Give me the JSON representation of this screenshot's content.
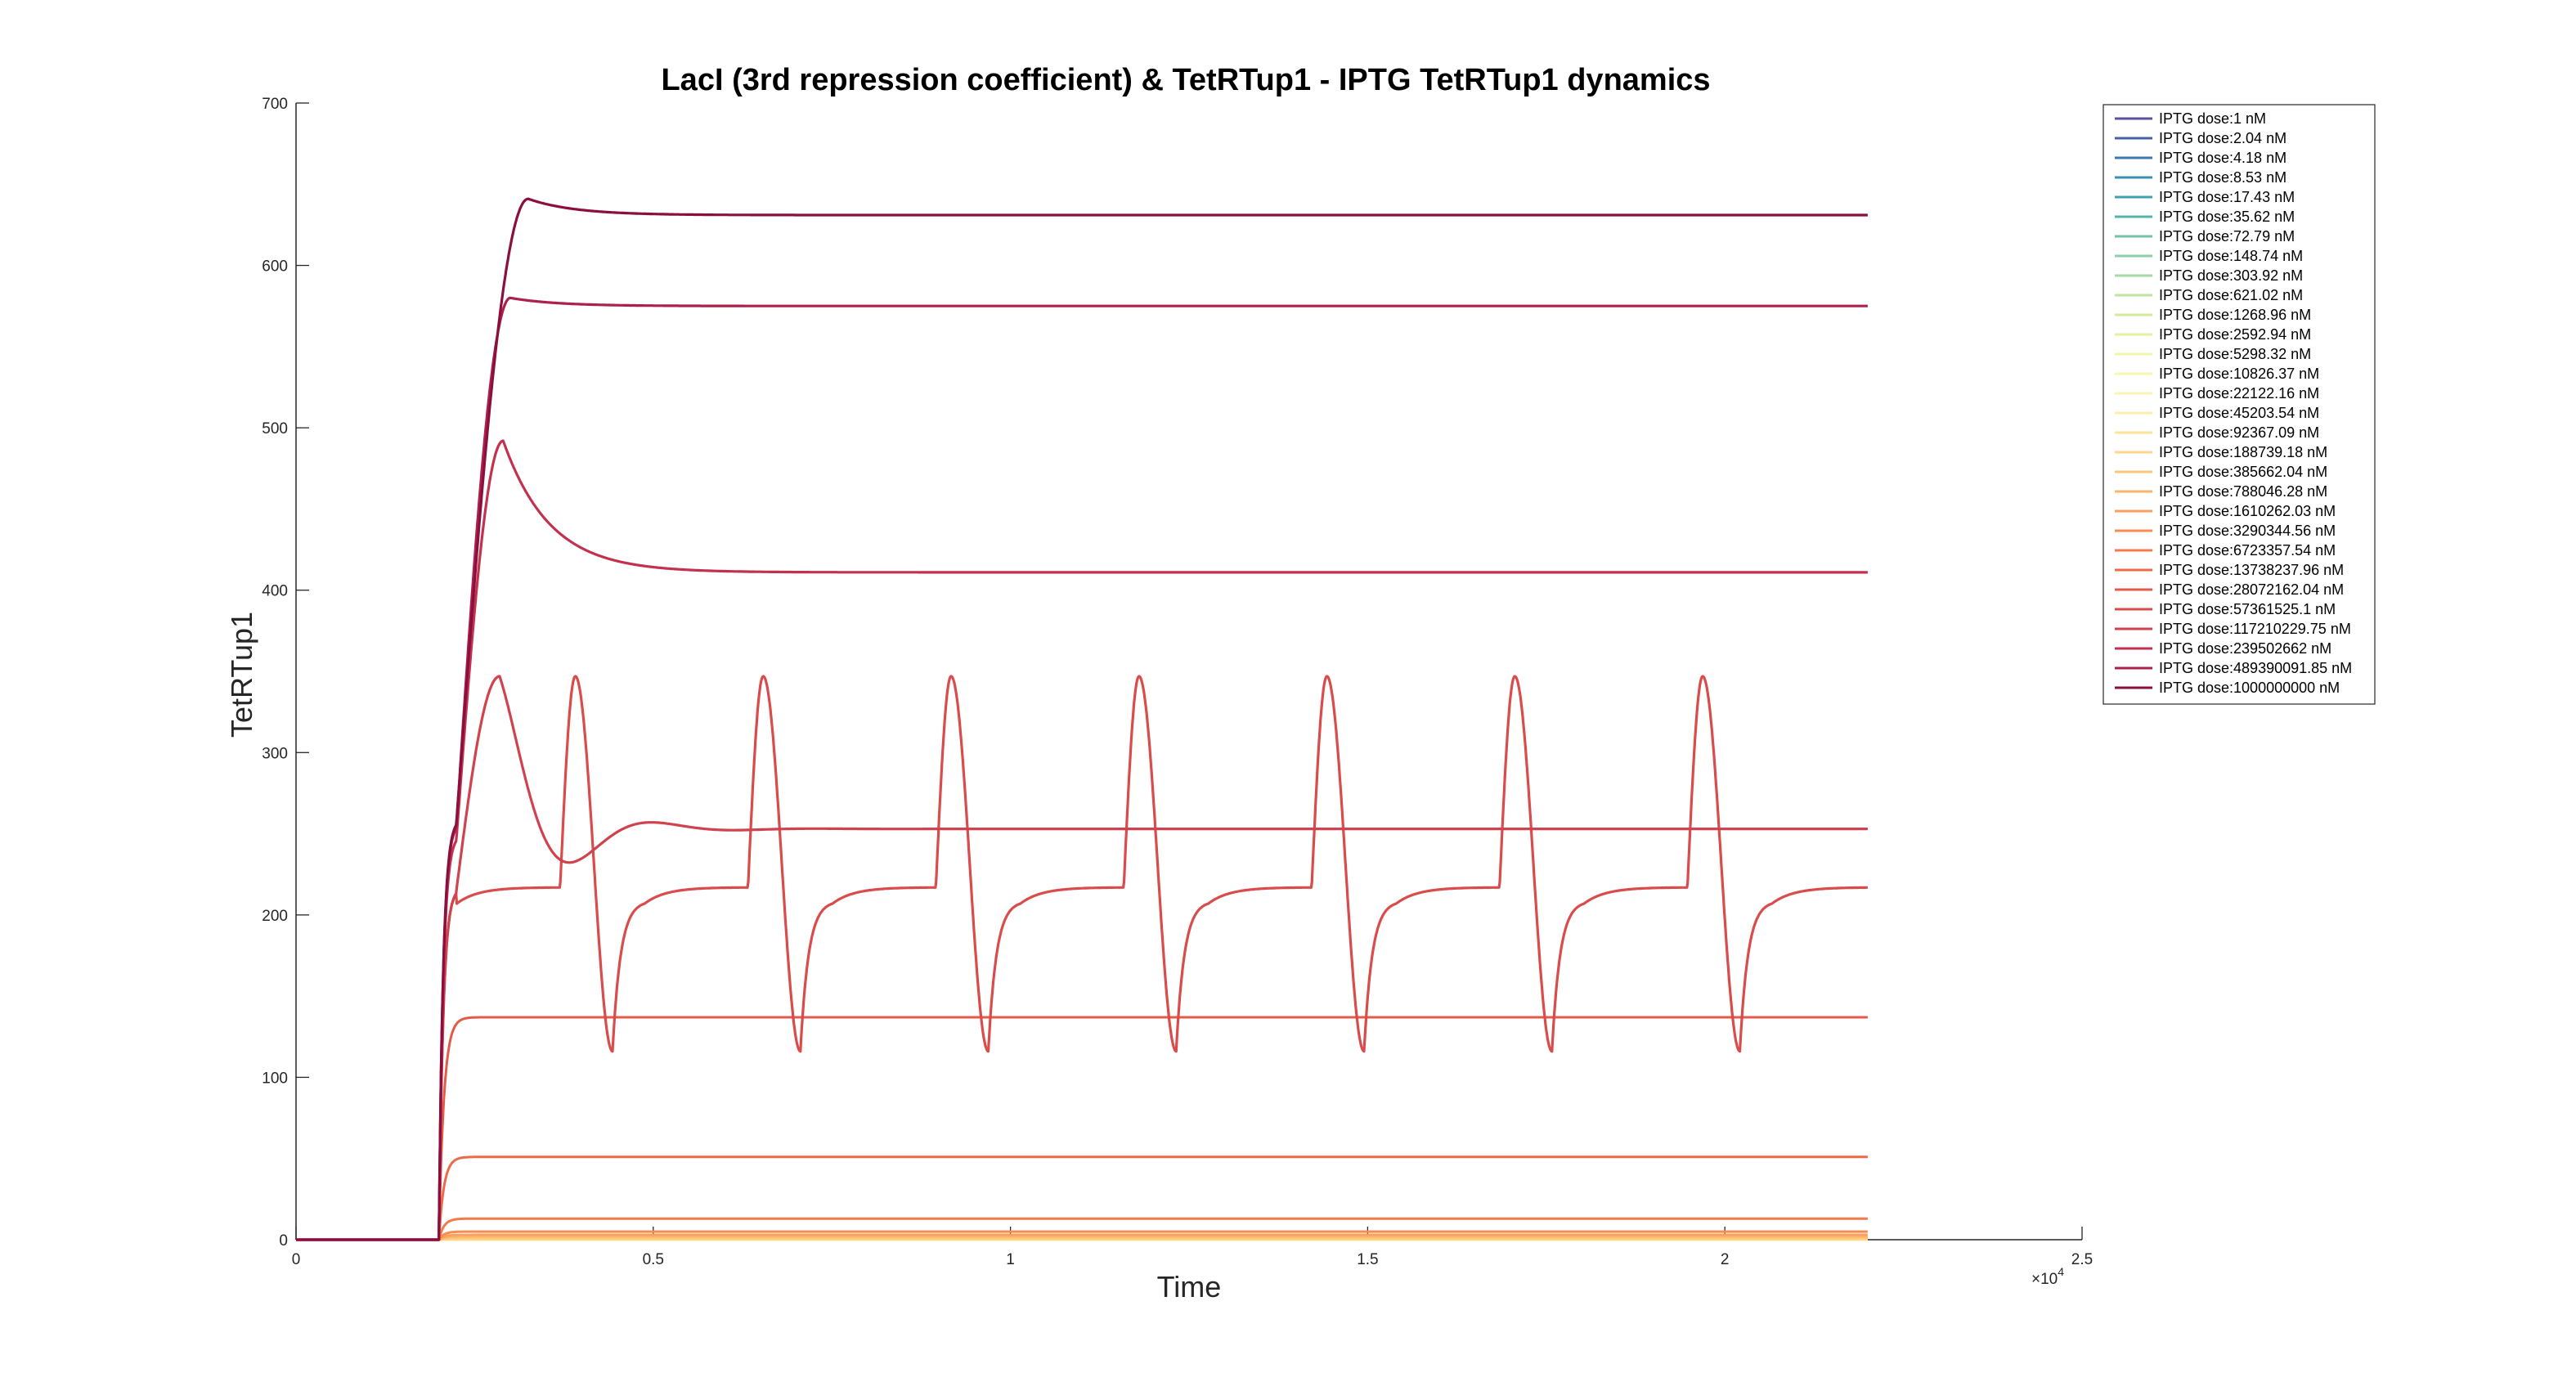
{
  "chart_data": {
    "type": "line",
    "title": "LacI (3rd repression coefficient) & TetRTup1 - IPTG TetRTup1 dynamics",
    "xlabel": "Time",
    "ylabel": "TetRTup1",
    "xlim": [
      0,
      25000
    ],
    "ylim": [
      0,
      700
    ],
    "x_ticks": [
      0,
      5000,
      10000,
      15000,
      20000,
      25000
    ],
    "x_tick_labels": [
      "0",
      "0.5",
      "1",
      "1.5",
      "2",
      "2.5"
    ],
    "x_exponent_label": "×10",
    "x_exponent_power": "4",
    "y_ticks": [
      0,
      100,
      200,
      300,
      400,
      500,
      600,
      700
    ],
    "y_tick_labels": [
      "0",
      "100",
      "200",
      "300",
      "400",
      "500",
      "600",
      "700"
    ],
    "grid": false,
    "legend_position": "top-right",
    "x_end": 22000,
    "step_time": 2000,
    "series": [
      {
        "name": "IPTG dose:1 nM",
        "color": "#5e4fa2",
        "kind": "flat",
        "steady": 0
      },
      {
        "name": "IPTG dose:2.04 nM",
        "color": "#4a61ab",
        "kind": "flat",
        "steady": 0
      },
      {
        "name": "IPTG dose:4.18 nM",
        "color": "#3d78b5",
        "kind": "flat",
        "steady": 0
      },
      {
        "name": "IPTG dose:8.53 nM",
        "color": "#3a8fb6",
        "kind": "flat",
        "steady": 0
      },
      {
        "name": "IPTG dose:17.43 nM",
        "color": "#3fa2b0",
        "kind": "flat",
        "steady": 0
      },
      {
        "name": "IPTG dose:35.62 nM",
        "color": "#55b4aa",
        "kind": "flat",
        "steady": 0
      },
      {
        "name": "IPTG dose:72.79 nM",
        "color": "#70c3a4",
        "kind": "flat",
        "steady": 0
      },
      {
        "name": "IPTG dose:148.74 nM",
        "color": "#8ccfa4",
        "kind": "flat",
        "steady": 0
      },
      {
        "name": "IPTG dose:303.92 nM",
        "color": "#a6dba4",
        "kind": "flat",
        "steady": 0
      },
      {
        "name": "IPTG dose:621.02 nM",
        "color": "#bee5a0",
        "kind": "flat",
        "steady": 0
      },
      {
        "name": "IPTG dose:1268.96 nM",
        "color": "#d2ec9b",
        "kind": "flat",
        "steady": 0
      },
      {
        "name": "IPTG dose:2592.94 nM",
        "color": "#e3f29b",
        "kind": "flat",
        "steady": 0
      },
      {
        "name": "IPTG dose:5298.32 nM",
        "color": "#eff8a6",
        "kind": "flat",
        "steady": 0
      },
      {
        "name": "IPTG dose:10826.37 nM",
        "color": "#f6f8b0",
        "kind": "flat",
        "steady": 0
      },
      {
        "name": "IPTG dose:22122.16 nM",
        "color": "#fbf5b5",
        "kind": "flat",
        "steady": 0
      },
      {
        "name": "IPTG dose:45203.54 nM",
        "color": "#feedac",
        "kind": "flat",
        "steady": 0
      },
      {
        "name": "IPTG dose:92367.09 nM",
        "color": "#fee39a",
        "kind": "flat",
        "steady": 0
      },
      {
        "name": "IPTG dose:188739.18 nM",
        "color": "#fed688",
        "kind": "flat",
        "steady": 0.5
      },
      {
        "name": "IPTG dose:385662.04 nM",
        "color": "#fdc678",
        "kind": "flat",
        "steady": 1
      },
      {
        "name": "IPTG dose:788046.28 nM",
        "color": "#fdb46c",
        "kind": "flat",
        "steady": 2
      },
      {
        "name": "IPTG dose:1610262.03 nM",
        "color": "#fca061",
        "kind": "flat",
        "steady": 3
      },
      {
        "name": "IPTG dose:3290344.56 nM",
        "color": "#f88c51",
        "kind": "flat",
        "steady": 5
      },
      {
        "name": "IPTG dose:6723357.54 nM",
        "color": "#f47a4a",
        "kind": "flat",
        "steady": 13
      },
      {
        "name": "IPTG dose:13738237.96 nM",
        "color": "#ee6a47",
        "kind": "flat",
        "steady": 51
      },
      {
        "name": "IPTG dose:28072162.04 nM",
        "color": "#e45a48",
        "kind": "flat",
        "steady": 137
      },
      {
        "name": "IPTG dose:57361525.1 nM",
        "color": "#da4c4b",
        "kind": "oscillation",
        "plateau": 217,
        "peak": 347,
        "trough": 116,
        "period": 2630
      },
      {
        "name": "IPTG dose:117210229.75 nM",
        "color": "#d0424e",
        "kind": "damped",
        "plateau": 217,
        "peak": 347,
        "peak_time": 2850,
        "dip": 230,
        "steady": 253
      },
      {
        "name": "IPTG dose:239502662 nM",
        "color": "#c2324f",
        "kind": "overshoot",
        "plateau": 250,
        "peak": 492,
        "peak_time": 2900,
        "steady": 411
      },
      {
        "name": "IPTG dose:489390091.85 nM",
        "color": "#ac2049",
        "kind": "overshoot",
        "plateau": 258,
        "peak": 580,
        "peak_time": 3000,
        "steady": 575
      },
      {
        "name": "IPTG dose:1000000000 nM",
        "color": "#8a0f3e",
        "kind": "overshoot",
        "plateau": 260,
        "peak": 641,
        "peak_time": 3250,
        "steady": 631
      }
    ]
  }
}
